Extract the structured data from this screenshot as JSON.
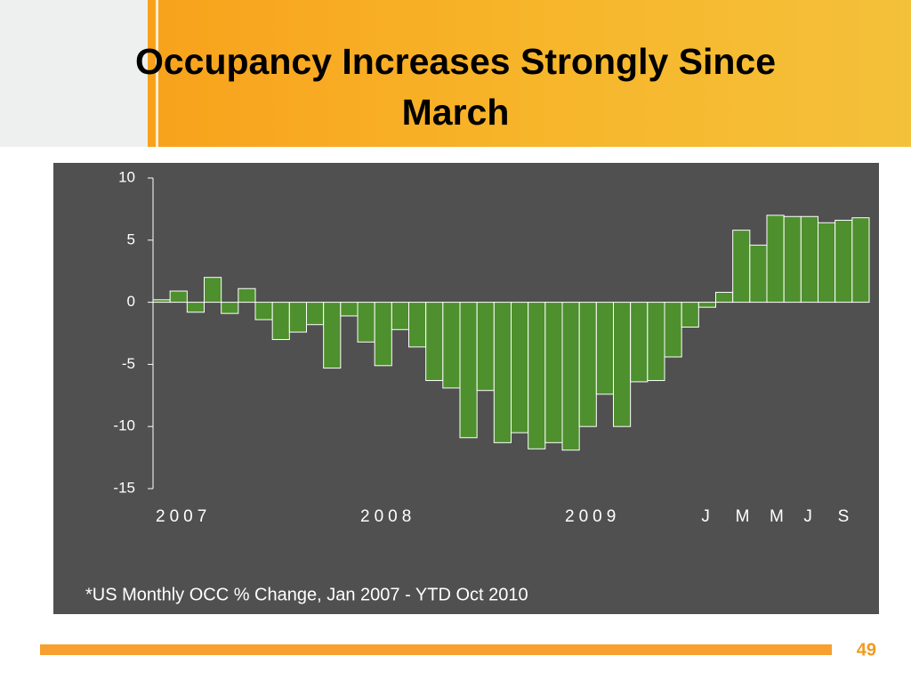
{
  "slide": {
    "title": "Occupancy Increases Strongly Since March",
    "page_number": "49"
  },
  "chart_data": {
    "type": "bar",
    "footnote": "*US Monthly OCC % Change, Jan 2007 - YTD Oct 2010",
    "categories": [
      "2007",
      null,
      null,
      null,
      null,
      null,
      null,
      null,
      null,
      null,
      null,
      null,
      "2008",
      null,
      null,
      null,
      null,
      null,
      null,
      null,
      null,
      null,
      null,
      null,
      "2009",
      null,
      null,
      null,
      null,
      null,
      null,
      null,
      "J",
      null,
      "M",
      null,
      "M",
      null,
      "J",
      null,
      "S",
      null
    ],
    "values": [
      0.2,
      0.9,
      -0.8,
      2.0,
      -0.9,
      1.1,
      -1.4,
      -3.0,
      -2.4,
      -1.8,
      -5.3,
      -1.1,
      -3.2,
      -5.1,
      -2.2,
      -3.6,
      -6.3,
      -6.9,
      -10.9,
      -7.1,
      -11.3,
      -10.5,
      -11.8,
      -11.3,
      -11.9,
      -10.0,
      -7.4,
      -10.0,
      -6.4,
      -6.3,
      -4.4,
      -2.0,
      -0.4,
      0.8,
      5.8,
      4.6,
      7.0,
      6.9,
      6.9,
      6.4,
      6.6,
      6.8
    ],
    "color": "#4e8f2e",
    "ylim": [
      -15,
      10
    ],
    "yticks": [
      -15,
      -10,
      -5,
      0,
      5,
      10
    ],
    "grid": false
  }
}
